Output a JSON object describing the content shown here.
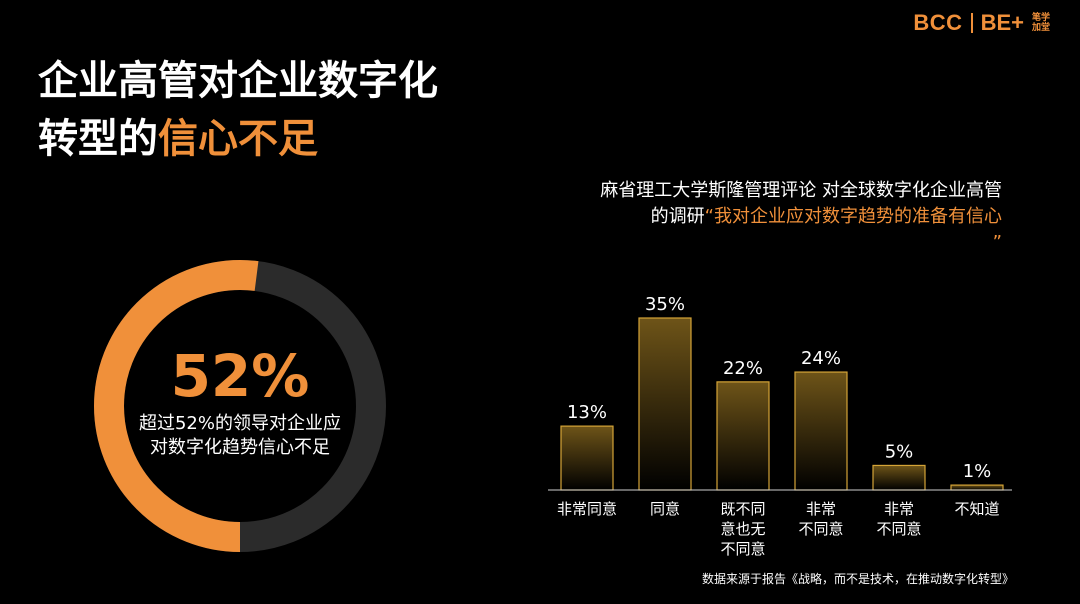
{
  "logo": {
    "bcc": "BCC",
    "be": "BE+",
    "cn_line1": "笔学",
    "cn_line2": "加堂"
  },
  "title": {
    "line1": "企业高管对企业数字化",
    "line2_normal": "转型的",
    "line2_accent": "信心不足"
  },
  "donut": {
    "value_text": "52%",
    "fraction": 0.52,
    "desc_line1": "超过52%的领导对企业应",
    "desc_line2": "对数字化趋势信心不足"
  },
  "subtitle": {
    "line1": "麻省理工大学斯隆管理评论 对全球数字化企业高管",
    "line2_normal": "的调研",
    "line2_quote": "“我对企业应对数字趋势的准备有信心",
    "line3": "”"
  },
  "chart_data": {
    "type": "bar",
    "categories": [
      [
        "非常同意"
      ],
      [
        "同意"
      ],
      [
        "既不同",
        "意也无",
        "不同意"
      ],
      [
        "非常",
        "不同意"
      ],
      [
        "非常",
        "不同意"
      ],
      [
        "不知道"
      ]
    ],
    "values": [
      13,
      35,
      22,
      24,
      5,
      1
    ],
    "value_labels": [
      "13%",
      "35%",
      "22%",
      "24%",
      "5%",
      "1%"
    ],
    "ylim": [
      0,
      35
    ],
    "grid": false
  },
  "source": "数据来源于报告《战略，而不是技术，在推动数字化转型》",
  "colors": {
    "accent": "#f0903a",
    "ring_track": "#2b2b2b",
    "bar_border": "#d4a437",
    "bar_top": "#6e5418",
    "bar_bottom": "#000000"
  }
}
